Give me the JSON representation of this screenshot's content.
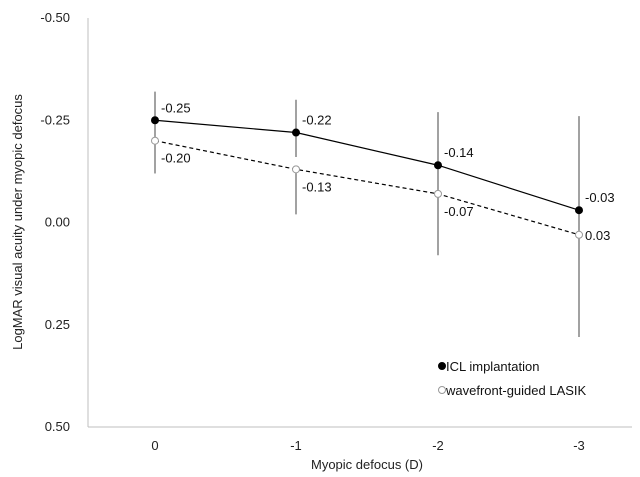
{
  "chart_data": {
    "type": "line",
    "xlabel": "Myopic defocus (D)",
    "ylabel": "LogMAR visual acuity under myopic defocus",
    "categories": [
      "0",
      "-1",
      "-2",
      "-3"
    ],
    "y_ticks": [
      "-0.50",
      "-0.25",
      "0.00",
      "0.25",
      "0.50"
    ],
    "y_tick_values": [
      -0.5,
      -0.25,
      0.0,
      0.25,
      0.5
    ],
    "ylim": [
      -0.5,
      0.5
    ],
    "y_inverted": true,
    "legend_position": "bottom-right",
    "grid": false,
    "series": [
      {
        "name": "ICL implantation",
        "values": [
          -0.25,
          -0.22,
          -0.14,
          -0.03
        ],
        "labels": [
          "-0.25",
          "-0.22",
          "-0.14",
          "-0.03"
        ],
        "error_low": [
          -0.32,
          -0.3,
          -0.27,
          -0.26
        ],
        "error_high": [
          -0.12,
          -0.16,
          0.0,
          0.28
        ],
        "line_style": "solid",
        "marker": "filled-circle",
        "color": "#000000"
      },
      {
        "name": "wavefront-guided LASIK",
        "values": [
          -0.2,
          -0.13,
          -0.07,
          0.03
        ],
        "labels": [
          "-0.20",
          "-0.13",
          "-0.07",
          "0.03"
        ],
        "error_low": [
          -0.12,
          -0.02,
          0.08,
          0.28
        ],
        "error_high": [
          -0.2,
          -0.13,
          -0.07,
          0.03
        ],
        "line_style": "dashed",
        "marker": "open-circle",
        "color": "#000000"
      }
    ]
  }
}
